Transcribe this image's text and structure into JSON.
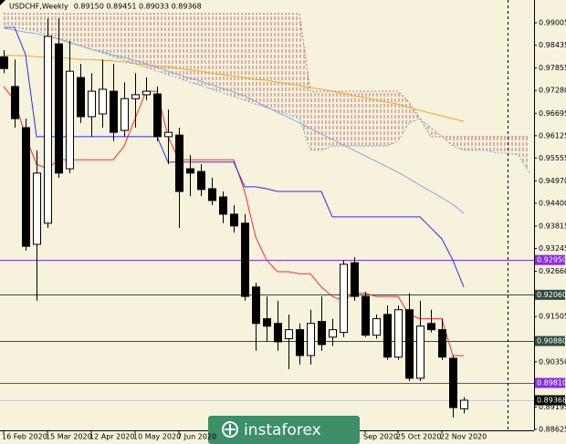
{
  "chart_data": {
    "type": "candlestick",
    "title": "USDCHF,Weekly",
    "ohlc_label": "0.89150 0.89451 0.89033 0.89368",
    "watermark": "instaforex",
    "categories": [
      "16 Feb 2020",
      null,
      null,
      null,
      "15 Mar 2020",
      null,
      null,
      null,
      "12 Apr 2020",
      null,
      null,
      null,
      "10 May 2020",
      null,
      null,
      null,
      "7 Jun 2020",
      null,
      null,
      null,
      null,
      null,
      null,
      null,
      null,
      null,
      null,
      null,
      null,
      null,
      null,
      null,
      null,
      "Sep 2020",
      null,
      null,
      "25 Oct 2020",
      null,
      null,
      null,
      "22 Nov 2020",
      null,
      null,
      null,
      null,
      null,
      null,
      null,
      null
    ],
    "open": [
      0.9814,
      0.9738,
      0.9633,
      0.9335,
      0.9389,
      0.9847,
      0.9528,
      0.9761,
      0.9661,
      0.9668,
      0.9726,
      0.9626,
      0.9707,
      0.9717,
      0.9719,
      0.961,
      0.9614,
      0.9528,
      0.9521,
      0.9477,
      0.9456,
      0.9412,
      0.9389,
      0.9226,
      0.9145,
      0.9133,
      0.9094,
      0.9117,
      0.9051,
      0.9138,
      0.9098,
      0.911,
      0.9288,
      0.9202,
      0.9103,
      0.9156,
      0.9047,
      0.9168,
      0.8993,
      0.9133,
      0.9117,
      0.9044,
      0.8915,
      null,
      null,
      null,
      null,
      null,
      null
    ],
    "high": [
      0.9831,
      0.9807,
      0.9656,
      0.9575,
      0.9912,
      0.9912,
      0.9854,
      0.9796,
      0.9772,
      0.9807,
      0.9796,
      0.9749,
      0.9772,
      0.9761,
      0.9738,
      0.9679,
      0.9633,
      0.9563,
      0.954,
      0.9505,
      0.947,
      0.9435,
      0.9412,
      0.9237,
      0.9202,
      0.9191,
      0.9156,
      0.9133,
      0.9168,
      0.9202,
      0.9145,
      0.9295,
      0.9302,
      0.9214,
      0.9156,
      0.9179,
      0.9179,
      0.921,
      0.9191,
      0.9168,
      0.9145,
      0.9051,
      0.89451,
      null,
      null,
      null,
      null,
      null,
      null
    ],
    "low": [
      0.9772,
      0.9633,
      0.9319,
      0.9191,
      0.9377,
      0.9505,
      0.9517,
      0.9645,
      0.961,
      0.9633,
      0.9598,
      0.961,
      0.9633,
      0.9703,
      0.9598,
      0.954,
      0.9377,
      0.9458,
      0.9458,
      0.9435,
      0.9389,
      0.9365,
      0.9191,
      0.9063,
      0.9086,
      0.9063,
      0.9016,
      0.9028,
      0.9028,
      0.9063,
      0.9075,
      0.9098,
      0.9191,
      0.9098,
      0.9094,
      0.904,
      0.904,
      0.8986,
      0.8986,
      0.911,
      0.904,
      0.8893,
      0.89033,
      null,
      null,
      null,
      null,
      null,
      null
    ],
    "close": [
      0.9784,
      0.9656,
      0.933,
      0.9517,
      0.9866,
      0.9517,
      0.9777,
      0.9661,
      0.9726,
      0.9731,
      0.9621,
      0.9707,
      0.9717,
      0.9726,
      0.961,
      0.9621,
      0.947,
      0.9517,
      0.9475,
      0.9447,
      0.9412,
      0.9382,
      0.9202,
      0.9133,
      0.9126,
      0.9086,
      0.9117,
      0.9051,
      0.9133,
      0.9079,
      0.9117,
      0.9284,
      0.9202,
      0.9103,
      0.9145,
      0.9047,
      0.9168,
      0.8993,
      0.9126,
      0.9117,
      0.9047,
      0.8918,
      0.89368,
      null,
      null,
      null,
      null,
      null,
      null
    ],
    "up_color": "#ffffff",
    "down_color": "#000000",
    "cloud_color": "#c07070",
    "lines": [
      {
        "color": "#f5a623",
        "style": "solid",
        "values": [
          0.9819,
          0.9817,
          0.9817,
          0.9814,
          0.9812,
          0.9812,
          0.981,
          0.9807,
          0.9807,
          0.9805,
          0.9803,
          0.9801,
          0.9796,
          0.9794,
          0.9791,
          0.9789,
          0.9784,
          0.978,
          0.9777,
          0.9772,
          0.9768,
          0.9765,
          0.9761,
          0.9756,
          0.9754,
          0.9749,
          0.9745,
          0.974,
          0.9735,
          0.9731,
          0.9726,
          0.9721,
          0.9714,
          0.971,
          0.9703,
          0.9698,
          0.9693,
          0.9684,
          0.9677,
          0.967,
          0.9663,
          0.9656,
          0.9649,
          null,
          null,
          null,
          null,
          null,
          null
        ]
      },
      {
        "color": "#8aa6e0",
        "style": "solid",
        "values": [
          0.9887,
          0.9882,
          0.9877,
          0.9873,
          0.9866,
          0.9859,
          0.985,
          0.9842,
          0.9833,
          0.9826,
          0.9819,
          0.9812,
          0.9805,
          0.9796,
          0.9787,
          0.9777,
          0.9768,
          0.9759,
          0.9752,
          0.9742,
          0.9733,
          0.9724,
          0.9714,
          0.97,
          0.9686,
          0.9672,
          0.9659,
          0.9645,
          0.9631,
          0.9617,
          0.9603,
          0.9589,
          0.9575,
          0.9561,
          0.9547,
          0.9533,
          0.9519,
          0.9503,
          0.9486,
          0.947,
          0.9454,
          0.9437,
          0.9414,
          null,
          null,
          null,
          null,
          null,
          null
        ]
      },
      {
        "color": "#ff2a2a",
        "style": "solid",
        "values": [
          0.9738,
          0.9703,
          0.961,
          0.954,
          0.9528,
          0.9551,
          0.9551,
          0.9551,
          0.9551,
          0.9551,
          0.9551,
          0.9586,
          0.9656,
          0.9726,
          0.9726,
          0.961,
          0.9551,
          0.9551,
          0.9551,
          0.9551,
          0.9551,
          0.9551,
          0.947,
          0.9354,
          0.9295,
          0.9265,
          0.9265,
          0.926,
          0.926,
          0.9226,
          0.9202,
          0.9191,
          0.921,
          0.921,
          0.9202,
          0.9202,
          0.9202,
          0.9156,
          0.9145,
          0.9145,
          0.9145,
          0.9051,
          0.9051,
          null,
          null,
          null,
          null,
          null,
          null
        ]
      },
      {
        "color": "#2a2aff",
        "style": "solid",
        "values": [
          0.9889,
          0.9889,
          0.9819,
          0.961,
          0.961,
          0.961,
          0.961,
          0.961,
          0.961,
          0.961,
          0.961,
          0.961,
          0.961,
          0.961,
          0.961,
          0.9545,
          0.9545,
          0.9545,
          0.9545,
          0.9545,
          0.9545,
          0.9545,
          0.9482,
          0.9482,
          0.9477,
          0.947,
          0.947,
          0.947,
          0.947,
          0.947,
          0.9405,
          0.9405,
          0.9405,
          0.9405,
          0.9405,
          0.9405,
          0.9405,
          0.9405,
          0.9405,
          0.9377,
          0.9349,
          0.9295,
          0.9226,
          null,
          null,
          null,
          null,
          null,
          null
        ]
      },
      {
        "color": "#c07070",
        "style": "dotted",
        "values": [
          0.9924,
          0.9924,
          0.9924,
          0.9924,
          0.9924,
          0.9924,
          0.9924,
          0.9924,
          0.9924,
          0.9924,
          0.9924,
          0.9924,
          0.9924,
          0.9924,
          0.9924,
          0.9924,
          0.9924,
          0.9924,
          0.9924,
          0.9924,
          0.9924,
          0.9924,
          0.9924,
          0.9924,
          0.9924,
          0.9924,
          0.9924,
          0.9924,
          0.9726,
          0.9726,
          0.9726,
          0.9726,
          0.9726,
          0.9726,
          0.9726,
          0.9726,
          0.9726,
          0.9698,
          0.9656,
          0.961,
          0.961,
          0.961,
          0.961,
          0.961,
          0.961,
          0.961,
          0.961,
          0.961,
          0.961
        ]
      },
      {
        "color": "#7fb0d8",
        "style": "dotted",
        "values": [
          0.9889,
          0.9889,
          0.9884,
          0.988,
          0.987,
          0.9861,
          0.9852,
          0.9842,
          0.9833,
          0.9824,
          0.9814,
          0.9805,
          0.9796,
          0.9787,
          0.9777,
          0.9768,
          0.9759,
          0.9749,
          0.974,
          0.9731,
          0.9721,
          0.9712,
          0.9703,
          0.9693,
          0.9684,
          0.9675,
          0.9666,
          0.9656,
          0.9575,
          0.9575,
          0.9586,
          0.9586,
          0.9586,
          0.9586,
          0.9586,
          0.9586,
          0.9598,
          0.9645,
          0.9656,
          0.9633,
          0.961,
          0.9586,
          0.9575,
          0.9575,
          0.9575,
          0.9568,
          0.9568,
          0.9563,
          0.9517
        ]
      }
    ],
    "cloud_lines": [
      4,
      5
    ],
    "levels": [
      {
        "value": 0.9295,
        "label": "0.92950",
        "color": "#8a2be2"
      },
      {
        "value": 0.9206,
        "label": "0.92060",
        "color": "#2f4f3f"
      },
      {
        "value": 0.9088,
        "label": "0.90880",
        "color": "#2f4f3f"
      },
      {
        "value": 0.8981,
        "label": "0.89810",
        "color": "#8a2be2"
      },
      {
        "value": 0.89368,
        "label": "0.89368",
        "color": "#c8c8c8"
      }
    ],
    "ylim": [
      0.8846,
      0.9959
    ],
    "yticks": [
      0.99005,
      0.98435,
      0.97855,
      {
        "value": 0.9728,
        "label": "0.97280"
      },
      0.96695,
      0.96125,
      0.95555,
      {
        "value": 0.9497,
        "label": "0.94970"
      },
      {
        "value": 0.944,
        "label": "0.94400"
      },
      0.93815,
      0.93245,
      {
        "value": 0.9266,
        "label": "0.92660"
      },
      0.91505,
      {
        "value": 0.9035,
        "label": "0.90350"
      },
      0.89195,
      0.88625
    ]
  }
}
